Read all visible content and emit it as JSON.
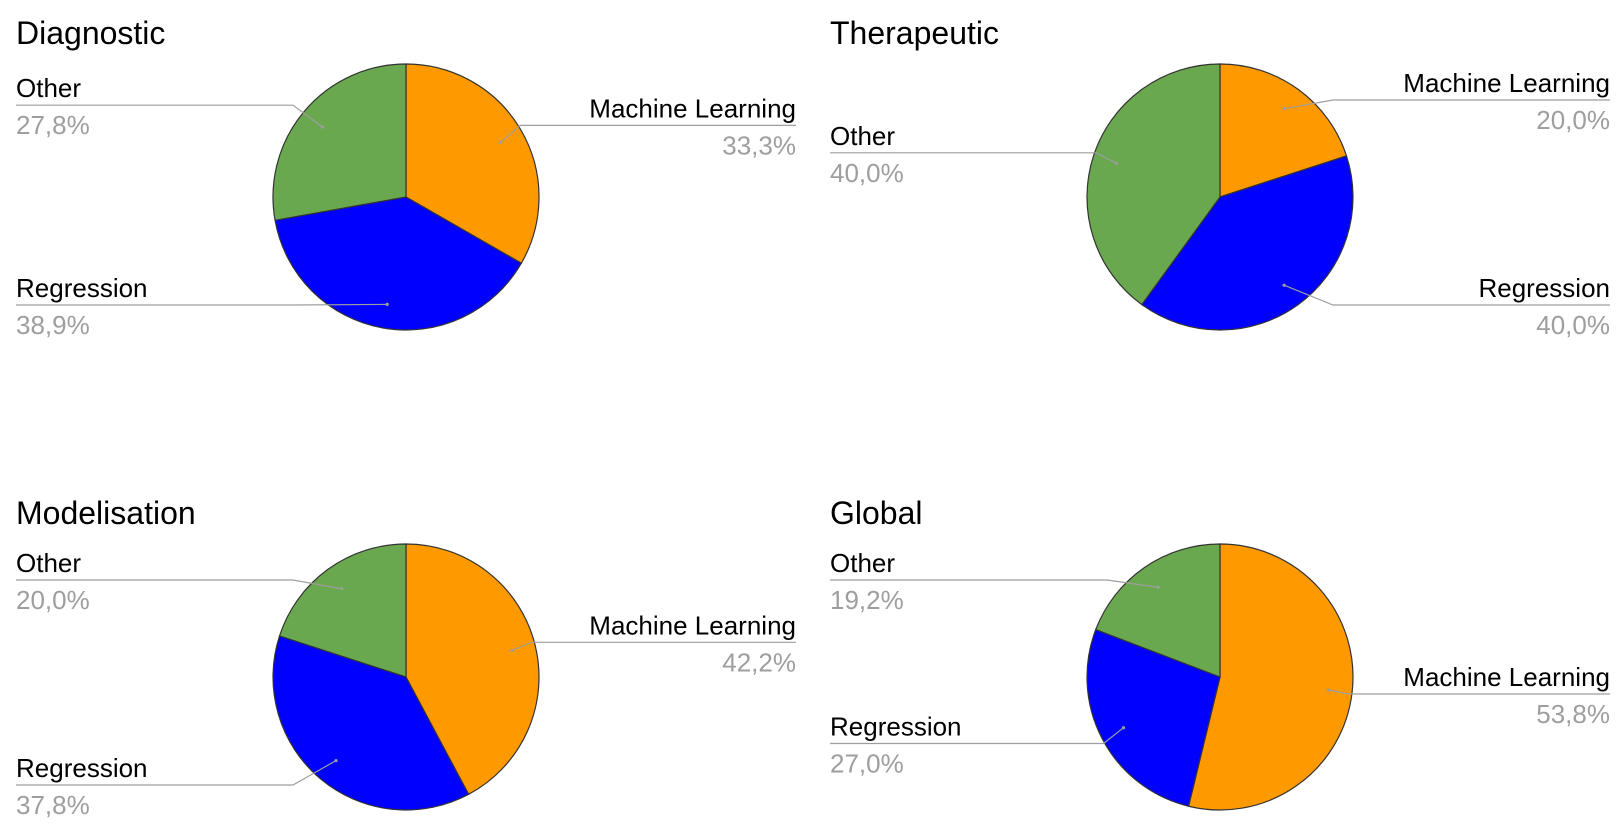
{
  "chart_data": [
    {
      "type": "pie",
      "title": "Diagnostic",
      "slices": [
        {
          "label": "Machine Learning",
          "value": 33.3,
          "display": "33,3%",
          "color": "#ff9900"
        },
        {
          "label": "Regression",
          "value": 38.9,
          "display": "38,9%",
          "color": "#0000ff"
        },
        {
          "label": "Other",
          "value": 27.8,
          "display": "27,8%",
          "color": "#6aa84f"
        }
      ]
    },
    {
      "type": "pie",
      "title": "Therapeutic",
      "slices": [
        {
          "label": "Machine Learning",
          "value": 20.0,
          "display": "20,0%",
          "color": "#ff9900"
        },
        {
          "label": "Regression",
          "value": 40.0,
          "display": "40,0%",
          "color": "#0000ff"
        },
        {
          "label": "Other",
          "value": 40.0,
          "display": "40,0%",
          "color": "#6aa84f"
        }
      ]
    },
    {
      "type": "pie",
      "title": "Modelisation",
      "slices": [
        {
          "label": "Machine Learning",
          "value": 42.2,
          "display": "42,2%",
          "color": "#ff9900"
        },
        {
          "label": "Regression",
          "value": 37.8,
          "display": "37,8%",
          "color": "#0000ff"
        },
        {
          "label": "Other",
          "value": 20.0,
          "display": "20,0%",
          "color": "#6aa84f"
        }
      ]
    },
    {
      "type": "pie",
      "title": "Global",
      "slices": [
        {
          "label": "Machine Learning",
          "value": 53.8,
          "display": "53,8%",
          "color": "#ff9900"
        },
        {
          "label": "Regression",
          "value": 27.0,
          "display": "27,0%",
          "color": "#0000ff"
        },
        {
          "label": "Other",
          "value": 19.2,
          "display": "19,2%",
          "color": "#6aa84f"
        }
      ]
    }
  ]
}
